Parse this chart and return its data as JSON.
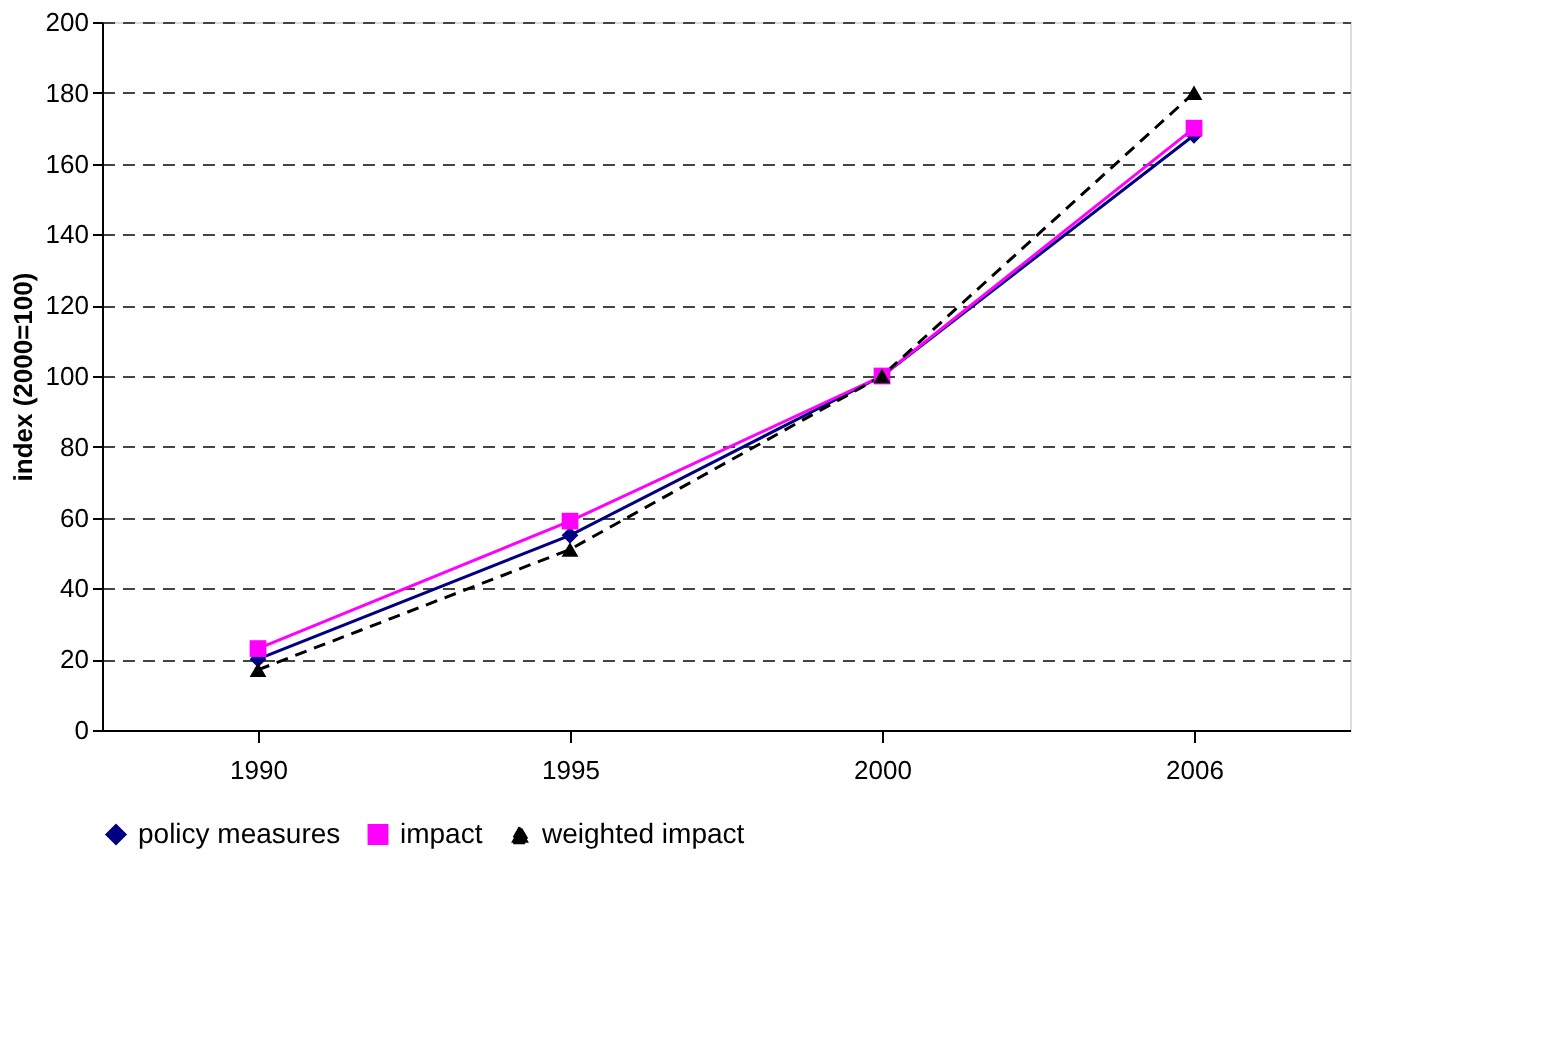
{
  "chart_data": {
    "type": "line",
    "ylabel": "index (2000=100)",
    "categories": [
      "1990",
      "1995",
      "2000",
      "2006"
    ],
    "series": [
      {
        "name": "policy measures",
        "color": "#000080",
        "values": [
          20,
          55,
          100,
          168
        ],
        "marker": "diamond",
        "line_style": "solid"
      },
      {
        "name": "impact",
        "color": "#ff00ff",
        "values": [
          23,
          59,
          100,
          170
        ],
        "marker": "square",
        "line_style": "solid"
      },
      {
        "name": "weighted impact",
        "color": "#000000",
        "values": [
          17,
          51,
          100,
          180
        ],
        "marker": "triangle",
        "line_style": "dashed"
      }
    ],
    "ylim": [
      0,
      200
    ],
    "yticks": [
      0,
      20,
      40,
      60,
      80,
      100,
      120,
      140,
      160,
      180,
      200
    ],
    "grid": "y",
    "legend": "bottom"
  }
}
